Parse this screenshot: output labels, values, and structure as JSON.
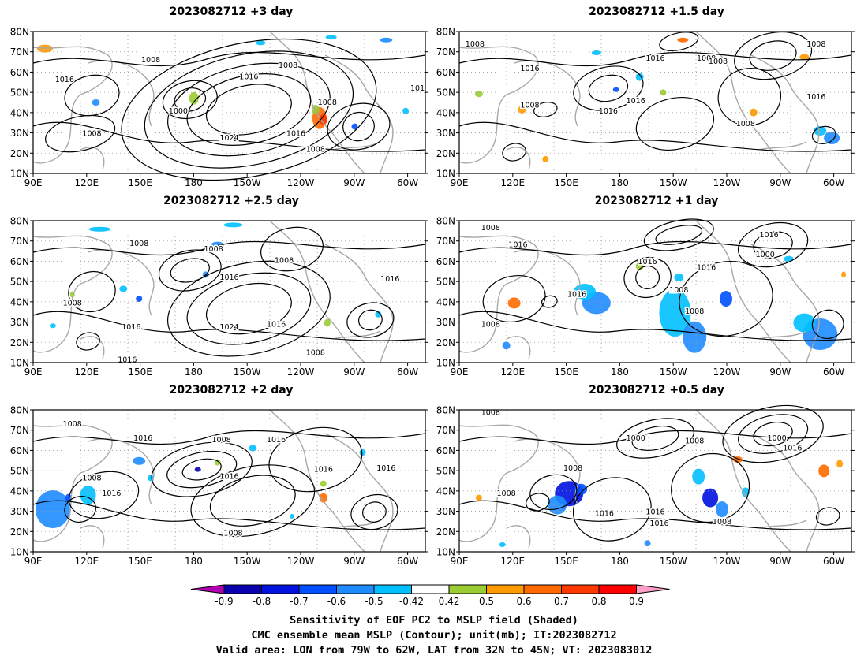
{
  "panels": [
    {
      "title": "2023082712 +3 day",
      "contour_labels": [
        "1008",
        "1008",
        "1016",
        "1016",
        "1008",
        "1000",
        "1008",
        "1024",
        "1016",
        "1008",
        "101"
      ]
    },
    {
      "title": "2023082712 +1.5 day",
      "contour_labels": [
        "1008",
        "1016",
        "1008",
        "1008",
        "1016",
        "1016",
        "1008",
        "1016",
        "1008",
        "1016",
        "1008"
      ]
    },
    {
      "title": "2023082712 +2.5 day",
      "contour_labels": [
        "1008",
        "1008",
        "1016",
        "1008",
        "1016",
        "1016",
        "1024",
        "1016",
        "1008",
        "1008",
        "1016"
      ]
    },
    {
      "title": "2023082712 +1 day",
      "contour_labels": [
        "1008",
        "1016",
        "1016",
        "1016",
        "1008",
        "1008",
        "1000",
        "1016",
        "1008",
        "1016"
      ]
    },
    {
      "title": "2023082712 +2 day",
      "contour_labels": [
        "1008",
        "1016",
        "1008",
        "1008",
        "1016",
        "1016",
        "1016",
        "1008",
        "1016",
        "1016"
      ]
    },
    {
      "title": "2023082712 +0.5 day",
      "contour_labels": [
        "1008",
        "1000",
        "1008",
        "1008",
        "1008",
        "1016",
        "1016",
        "1016",
        "1008",
        "1000",
        "1016"
      ]
    }
  ],
  "axes": {
    "lat_labels": [
      "80N",
      "70N",
      "60N",
      "50N",
      "40N",
      "30N",
      "20N",
      "10N"
    ],
    "lon_labels": [
      "90E",
      "120E",
      "150E",
      "180",
      "150W",
      "120W",
      "90W",
      "60W"
    ]
  },
  "colorbar": {
    "ticks": [
      "-0.9",
      "-0.8",
      "-0.7",
      "-0.6",
      "-0.5",
      "-0.42",
      "0.42",
      "0.5",
      "0.6",
      "0.7",
      "0.8",
      "0.9"
    ],
    "colors": [
      "#b000b0",
      "#0a00b0",
      "#0012e0",
      "#0050ff",
      "#1e8cff",
      "#00c0ff",
      "#ffffff",
      "#9acd32",
      "#ff9a00",
      "#ff6a00",
      "#ff3800",
      "#ff0000",
      "#ff9ec6"
    ]
  },
  "caption": {
    "line1": "Sensitivity of EOF PC2 to MSLP field (Shaded)",
    "line2": "CMC ensemble mean MSLP (Contour); unit(mb); IT:2023082712",
    "line3": "Valid area: LON from 79W to 62W, LAT from 32N to 45N; VT: 2023083012"
  }
}
